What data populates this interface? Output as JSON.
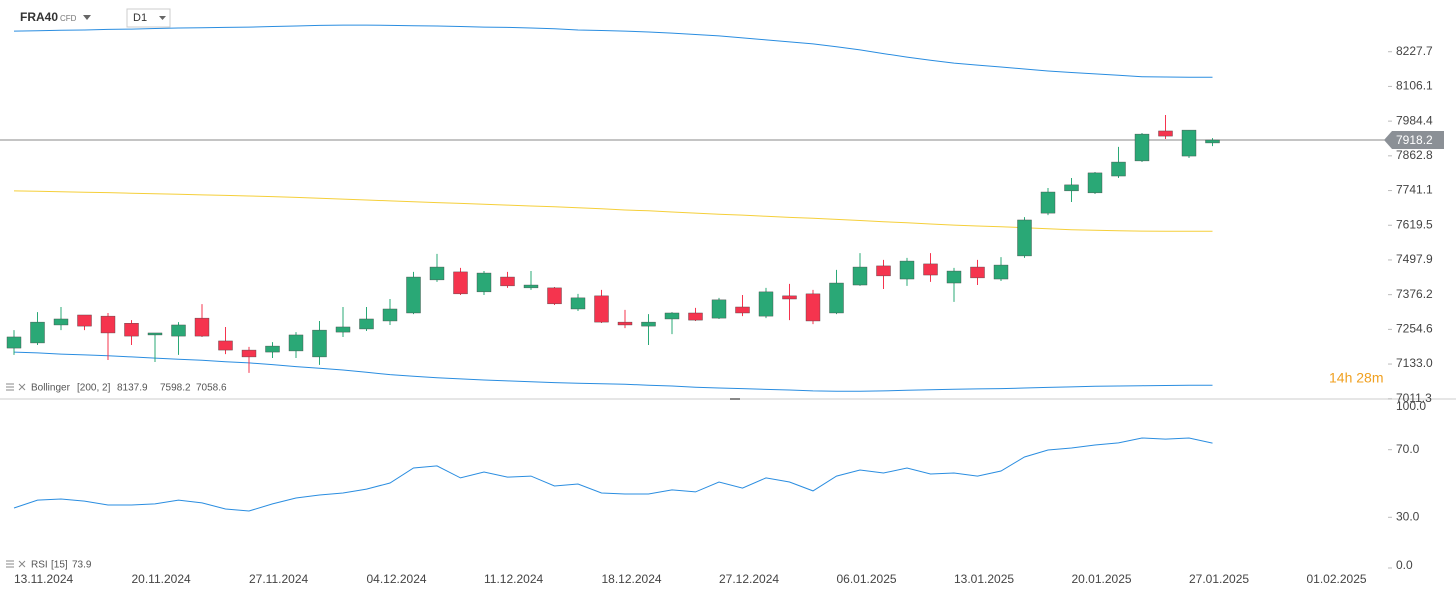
{
  "chart_data": {
    "type": "candlestick",
    "symbol": "FRA40",
    "instrument_type": "CFD",
    "timeframe": "D1",
    "categories": [
      "13.11.2024",
      null,
      null,
      null,
      null,
      "20.11.2024",
      null,
      null,
      null,
      null,
      "27.11.2024",
      null,
      null,
      null,
      null,
      "04.12.2024",
      null,
      null,
      null,
      null,
      "11.12.2024",
      null,
      null,
      null,
      null,
      "18.12.2024",
      null,
      null,
      null,
      null,
      "27.12.2024",
      null,
      null,
      null,
      null,
      "06.01.2025",
      null,
      null,
      null,
      null,
      "13.01.2025",
      null,
      null,
      null,
      null,
      "20.01.2025",
      null,
      null,
      null,
      null,
      "27.01.2025",
      null,
      null,
      null,
      null,
      "01.02.2025"
    ],
    "open": [
      7189,
      7207,
      7270,
      7305,
      7301,
      7276,
      7235,
      7231,
      7294,
      7214,
      7182,
      7175,
      7179,
      7158,
      7245,
      7256,
      7284,
      7312,
      7428,
      7456,
      7386,
      7438,
      7400,
      7400,
      7326,
      7372,
      7280,
      7266,
      7291,
      7312,
      7294,
      7333,
      7301,
      7372,
      7379,
      7312,
      7410,
      7477,
      7431,
      7484,
      7417,
      7473,
      7431,
      7512,
      7662,
      7740,
      7733,
      7792,
      7845,
      7950,
      7862,
      7908,
      null,
      null,
      null,
      null
    ],
    "high": [
      7252,
      7315,
      7333,
      7305,
      7312,
      7287,
      7242,
      7280,
      7343,
      7263,
      7193,
      7210,
      7245,
      7284,
      7333,
      7333,
      7361,
      7456,
      7519,
      7470,
      7459,
      7456,
      7459,
      7403,
      7379,
      7393,
      7323,
      7308,
      7315,
      7330,
      7365,
      7375,
      7400,
      7414,
      7393,
      7463,
      7522,
      7498,
      7505,
      7522,
      7470,
      7498,
      7508,
      7648,
      7750,
      7785,
      7806,
      7894,
      7943,
      8006,
      7953,
      7925,
      null,
      null,
      null,
      null
    ],
    "low": [
      7165,
      7200,
      7252,
      7252,
      7147,
      7200,
      7140,
      7165,
      7228,
      7168,
      7102,
      7154,
      7154,
      7130,
      7228,
      7249,
      7270,
      7308,
      7421,
      7375,
      7375,
      7400,
      7393,
      7340,
      7319,
      7277,
      7259,
      7200,
      7238,
      7284,
      7291,
      7301,
      7294,
      7287,
      7273,
      7308,
      7407,
      7396,
      7407,
      7421,
      7351,
      7410,
      7424,
      7505,
      7655,
      7701,
      7729,
      7785,
      7841,
      7922,
      7855,
      7897,
      null,
      null,
      null,
      null
    ],
    "close": [
      7228,
      7280,
      7291,
      7266,
      7242,
      7231,
      7242,
      7270,
      7231,
      7182,
      7158,
      7196,
      7235,
      7252,
      7263,
      7291,
      7326,
      7438,
      7473,
      7379,
      7452,
      7407,
      7410,
      7344,
      7365,
      7280,
      7270,
      7280,
      7312,
      7287,
      7358,
      7312,
      7386,
      7361,
      7284,
      7417,
      7473,
      7442,
      7494,
      7445,
      7459,
      7435,
      7480,
      7638,
      7736,
      7761,
      7803,
      7841,
      7939,
      7932,
      7953,
      7918.2,
      null,
      null,
      null,
      null
    ],
    "up_color": "#2aa876",
    "down_color": "#f5344e",
    "ylim": [
      7000,
      8409
    ],
    "yticks": [
      {
        "value": 7011.3,
        "label": "7011.3"
      },
      {
        "value": 7133,
        "label": "7133.0"
      },
      7254.6,
      7376.2,
      7497.9,
      7619.5,
      7741.1,
      7862.8,
      7984.4,
      8106.1,
      8227.7
    ],
    "current_price": 7918.2,
    "countdown": "14h 28m",
    "bollinger": {
      "name": "Bollinger",
      "params": "[200,  2]",
      "color": "#2a8de0",
      "middle_color": "#f5cf3a",
      "upper": [
        8300,
        8301,
        8303,
        8304,
        8306,
        8307,
        8309,
        8311,
        8312,
        8313,
        8314,
        8316,
        8318,
        8320,
        8321,
        8321,
        8320,
        8319,
        8318,
        8316,
        8314,
        8313,
        8311,
        8308,
        8304,
        8302,
        8300,
        8297,
        8293,
        8288,
        8283,
        8276,
        8269,
        8262,
        8255,
        8245,
        8234,
        8221,
        8209,
        8198,
        8188,
        8181,
        8174,
        8167,
        8160,
        8155,
        8150,
        8145,
        8140,
        8139,
        8138,
        8137.9,
        null,
        null,
        null,
        null
      ],
      "middle": [
        7740,
        7739,
        7737,
        7735,
        7734,
        7732,
        7730,
        7728,
        7726,
        7724,
        7722,
        7720,
        7717,
        7714,
        7711,
        7708,
        7705,
        7702,
        7699,
        7696,
        7693,
        7690,
        7687,
        7684,
        7681,
        7677,
        7673,
        7670,
        7666,
        7662,
        7658,
        7655,
        7651,
        7647,
        7644,
        7640,
        7636,
        7632,
        7628,
        7624,
        7620,
        7617,
        7614,
        7611,
        7607,
        7604,
        7602,
        7600,
        7599,
        7598.5,
        7598.3,
        7598.2,
        null,
        null,
        null,
        null
      ],
      "lower": [
        7175,
        7172,
        7168,
        7165,
        7162,
        7158,
        7154,
        7150,
        7146,
        7141,
        7137,
        7131,
        7124,
        7118,
        7112,
        7104,
        7096,
        7090,
        7085,
        7081,
        7077,
        7074,
        7071,
        7068,
        7066,
        7064,
        7062,
        7059,
        7056,
        7052,
        7049,
        7047,
        7044,
        7042,
        7039,
        7038,
        7038,
        7039,
        7041,
        7043,
        7045,
        7046,
        7047,
        7049,
        7051,
        7053,
        7055,
        7056,
        7057,
        7058,
        7058.4,
        7058.6,
        null,
        null,
        null,
        null
      ]
    },
    "rsi": {
      "name": "RSI",
      "params": "[15]",
      "color": "#2a8de0",
      "values": [
        35.5,
        40.2,
        40.8,
        39.6,
        37.3,
        37.3,
        37.9,
        40.2,
        38.5,
        34.9,
        33.7,
        37.9,
        41.4,
        43.2,
        44.4,
        46.7,
        50.3,
        59.2,
        60.4,
        53.3,
        56.8,
        53.8,
        54.4,
        48.5,
        49.7,
        44.4,
        43.8,
        43.8,
        46.2,
        45.0,
        50.9,
        47.3,
        53.3,
        50.9,
        45.6,
        54.4,
        58.0,
        56.2,
        59.2,
        55.6,
        56.2,
        54.4,
        57.4,
        65.7,
        69.8,
        71.0,
        72.8,
        74.0,
        76.9,
        76.3,
        76.9,
        73.9,
        null,
        null,
        null,
        null
      ],
      "ylim": [
        0,
        100
      ],
      "yticks": [
        {
          "value": 0,
          "label": "0.0"
        },
        {
          "value": 30,
          "label": "30.0"
        },
        {
          "value": 70,
          "label": "70.0"
        },
        {
          "value": 100,
          "label": "100.0"
        }
      ]
    }
  }
}
